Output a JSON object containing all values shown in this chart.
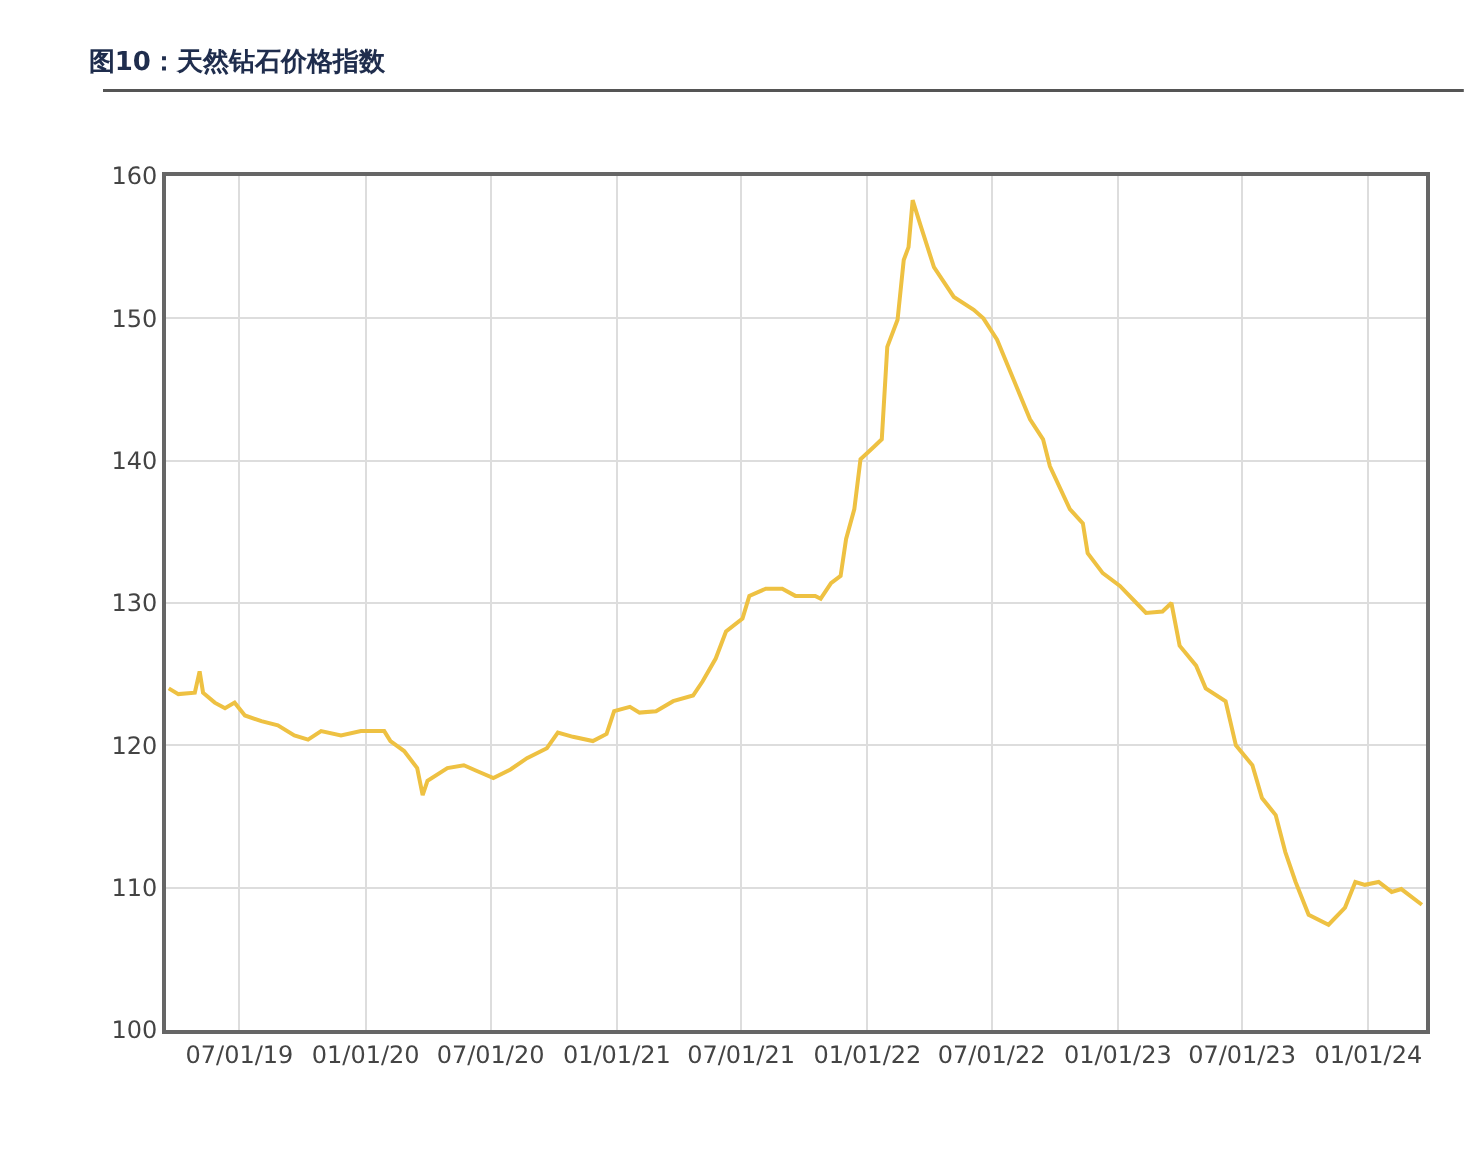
{
  "chart_data": {
    "type": "line",
    "title": "图10：天然钻石价格指数",
    "x": [
      "2019-03-20",
      "2019-04-03",
      "2019-04-27",
      "2019-05-04",
      "2019-05-09",
      "2019-05-26",
      "2019-06-10",
      "2019-06-24",
      "2019-07-09",
      "2019-08-02",
      "2019-08-26",
      "2019-09-19",
      "2019-10-09",
      "2019-10-28",
      "2019-11-26",
      "2019-12-25",
      "2020-01-13",
      "2020-01-28",
      "2020-02-06",
      "2020-02-26",
      "2020-03-16",
      "2020-03-24",
      "2020-03-31",
      "2020-04-29",
      "2020-05-23",
      "2020-06-11",
      "2020-07-05",
      "2020-07-30",
      "2020-08-23",
      "2020-09-21",
      "2020-10-07",
      "2020-10-29",
      "2020-11-27",
      "2020-12-17",
      "2020-12-28",
      "2021-01-20",
      "2021-02-03",
      "2021-02-27",
      "2021-03-24",
      "2021-04-22",
      "2021-05-06",
      "2021-05-25",
      "2021-06-09",
      "2021-07-03",
      "2021-07-13",
      "2021-08-06",
      "2021-08-30",
      "2021-09-18",
      "2021-10-17",
      "2021-10-25",
      "2021-11-09",
      "2021-11-23",
      "2021-12-01",
      "2021-12-13",
      "2021-12-22",
      "2022-01-11",
      "2022-01-22",
      "2022-01-30",
      "2022-02-14",
      "2022-02-23",
      "2022-03-02",
      "2022-03-08",
      "2022-03-19",
      "2022-04-08",
      "2022-05-07",
      "2022-06-05",
      "2022-06-19",
      "2022-07-09",
      "2022-08-02",
      "2022-08-26",
      "2022-09-14",
      "2022-09-24",
      "2022-10-23",
      "2022-11-11",
      "2022-11-18",
      "2022-12-10",
      "2023-01-04",
      "2023-01-28",
      "2023-02-11",
      "2023-03-07",
      "2023-03-20",
      "2023-04-01",
      "2023-04-25",
      "2023-05-09",
      "2023-06-07",
      "2023-06-22",
      "2023-07-16",
      "2023-07-30",
      "2023-08-19",
      "2023-09-02",
      "2023-09-17",
      "2023-10-06",
      "2023-11-04",
      "2023-11-28",
      "2023-12-13",
      "2023-12-27",
      "2024-01-16",
      "2024-02-04",
      "2024-02-18",
      "2024-03-19"
    ],
    "series": [
      {
        "color": "#eec142",
        "values": [
          124.0,
          123.6,
          123.7,
          125.2,
          123.7,
          123.0,
          122.6,
          123.0,
          122.1,
          121.7,
          121.4,
          120.7,
          120.4,
          121.0,
          120.7,
          121.0,
          121.0,
          121.0,
          120.3,
          119.6,
          118.4,
          116.5,
          117.5,
          118.4,
          118.6,
          118.2,
          117.7,
          118.3,
          119.1,
          119.8,
          120.9,
          120.6,
          120.3,
          120.8,
          122.4,
          122.7,
          122.3,
          122.4,
          123.1,
          123.5,
          124.5,
          126.1,
          128.0,
          128.9,
          130.5,
          131.0,
          131.0,
          130.5,
          130.5,
          130.3,
          131.4,
          131.9,
          134.5,
          136.6,
          140.1,
          141.0,
          141.5,
          148.0,
          149.9,
          154.1,
          155.0,
          158.3,
          156.6,
          153.6,
          151.5,
          150.6,
          150.0,
          148.5,
          145.7,
          142.9,
          141.5,
          139.6,
          136.6,
          135.6,
          133.5,
          132.1,
          131.2,
          130.0,
          129.3,
          129.4,
          130.0,
          127.0,
          125.6,
          124.0,
          123.1,
          120.0,
          118.6,
          116.3,
          115.1,
          112.5,
          110.4,
          108.1,
          107.4,
          108.6,
          110.4,
          110.2,
          110.4,
          109.7,
          109.9,
          108.8
        ]
      }
    ],
    "xlim": [
      "2019-03-16",
      "2024-03-25"
    ],
    "xticks": [
      {
        "value": "2019-07-01",
        "label": "07/01/19"
      },
      {
        "value": "2020-01-01",
        "label": "01/01/20"
      },
      {
        "value": "2020-07-01",
        "label": "07/01/20"
      },
      {
        "value": "2021-01-01",
        "label": "01/01/21"
      },
      {
        "value": "2021-07-01",
        "label": "07/01/21"
      },
      {
        "value": "2022-01-01",
        "label": "01/01/22"
      },
      {
        "value": "2022-07-01",
        "label": "07/01/22"
      },
      {
        "value": "2023-01-01",
        "label": "01/01/23"
      },
      {
        "value": "2023-07-01",
        "label": "07/01/23"
      },
      {
        "value": "2024-01-01",
        "label": "01/01/24"
      }
    ],
    "ylim": [
      100,
      160
    ],
    "yticks": [
      100,
      110,
      120,
      130,
      140,
      150,
      160
    ],
    "grid": true,
    "marker": "none",
    "line_style": "solid"
  }
}
